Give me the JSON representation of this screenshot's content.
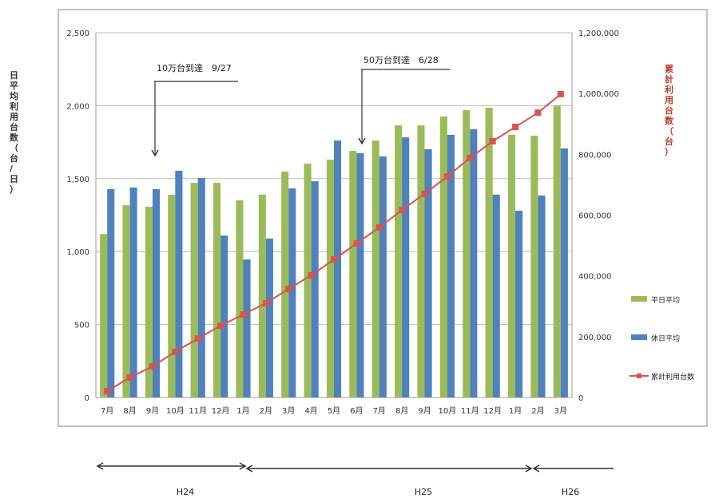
{
  "chart_data": {
    "type": "bar",
    "categories": [
      "7月",
      "8月",
      "9月",
      "10月",
      "11月",
      "12月",
      "1月",
      "2月",
      "3月",
      "4月",
      "5月",
      "6月",
      "7月",
      "8月",
      "9月",
      "10月",
      "11月",
      "12月",
      "1月",
      "2月",
      "3月"
    ],
    "ylabel": "日平均利用台数（台/日）",
    "y2label": "累計利用台数（台）",
    "ylim": [
      0,
      2500
    ],
    "y2lim": [
      0,
      1200000
    ],
    "yticks": [
      "0",
      "500",
      "1,000",
      "1,500",
      "2,000",
      "2,500"
    ],
    "y2ticks": [
      "0",
      "200,000",
      "400,000",
      "600,000",
      "800,000",
      "1,000,000",
      "1,200,000"
    ],
    "grid": true,
    "legend_placement": "right",
    "series": [
      {
        "name": "平日平均",
        "type": "bar",
        "axis": "left",
        "color": "#9bbb59",
        "values": [
          1120,
          1318,
          1307,
          1390,
          1471,
          1471,
          1351,
          1390,
          1548,
          1603,
          1630,
          1690,
          1761,
          1865,
          1865,
          1926,
          1969,
          1986,
          1800,
          1794,
          2002
        ]
      },
      {
        "name": "休日平均",
        "type": "bar",
        "axis": "left",
        "color": "#4f81bd",
        "values": [
          1428,
          1439,
          1428,
          1554,
          1504,
          1110,
          946,
          1089,
          1433,
          1482,
          1761,
          1674,
          1652,
          1783,
          1701,
          1800,
          1838,
          1390,
          1280,
          1384,
          1707
        ]
      },
      {
        "name": "累計利用台数",
        "type": "line",
        "axis": "right",
        "color": "#d9534f",
        "values": [
          21000,
          65600,
          102400,
          150000,
          194000,
          236000,
          273000,
          310000,
          357000,
          402000,
          454000,
          507000,
          559000,
          617000,
          670000,
          727000,
          788000,
          843000,
          890000,
          937000,
          998000
        ]
      }
    ],
    "annotations": [
      {
        "text": "10万台到達　9/27",
        "category_index": 2
      },
      {
        "text": "50万台到達　6/28",
        "category_index": 11
      }
    ],
    "periods": [
      {
        "label": "H24"
      },
      {
        "label": "H25"
      },
      {
        "label": "H26"
      }
    ]
  }
}
